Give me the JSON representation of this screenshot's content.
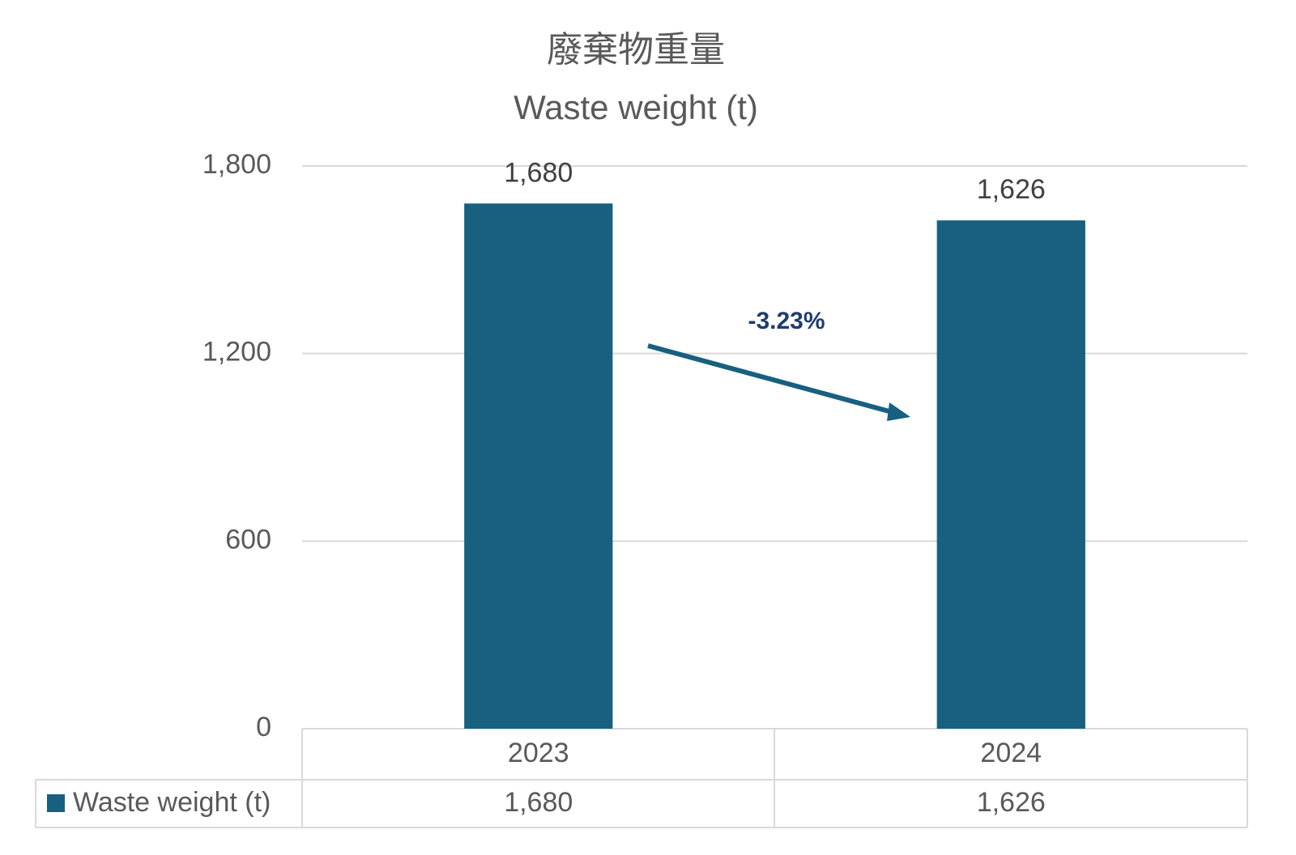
{
  "chart_data": {
    "type": "bar",
    "title": "廢棄物重量",
    "subtitle": "Waste weight (t)",
    "categories": [
      "2023",
      "2024"
    ],
    "series": [
      {
        "name": "Waste weight (t)",
        "color": "#17607f",
        "values": [
          1680,
          1626
        ],
        "value_labels": [
          "1,680",
          "1,626"
        ]
      }
    ],
    "ylim": [
      0,
      1800
    ],
    "yticks": [
      0,
      600,
      {
        "value": 1200,
        "label": "1,200"
      },
      {
        "value": 1800,
        "label": "1,800"
      }
    ],
    "grid": true,
    "annotation": "-3.23%"
  }
}
